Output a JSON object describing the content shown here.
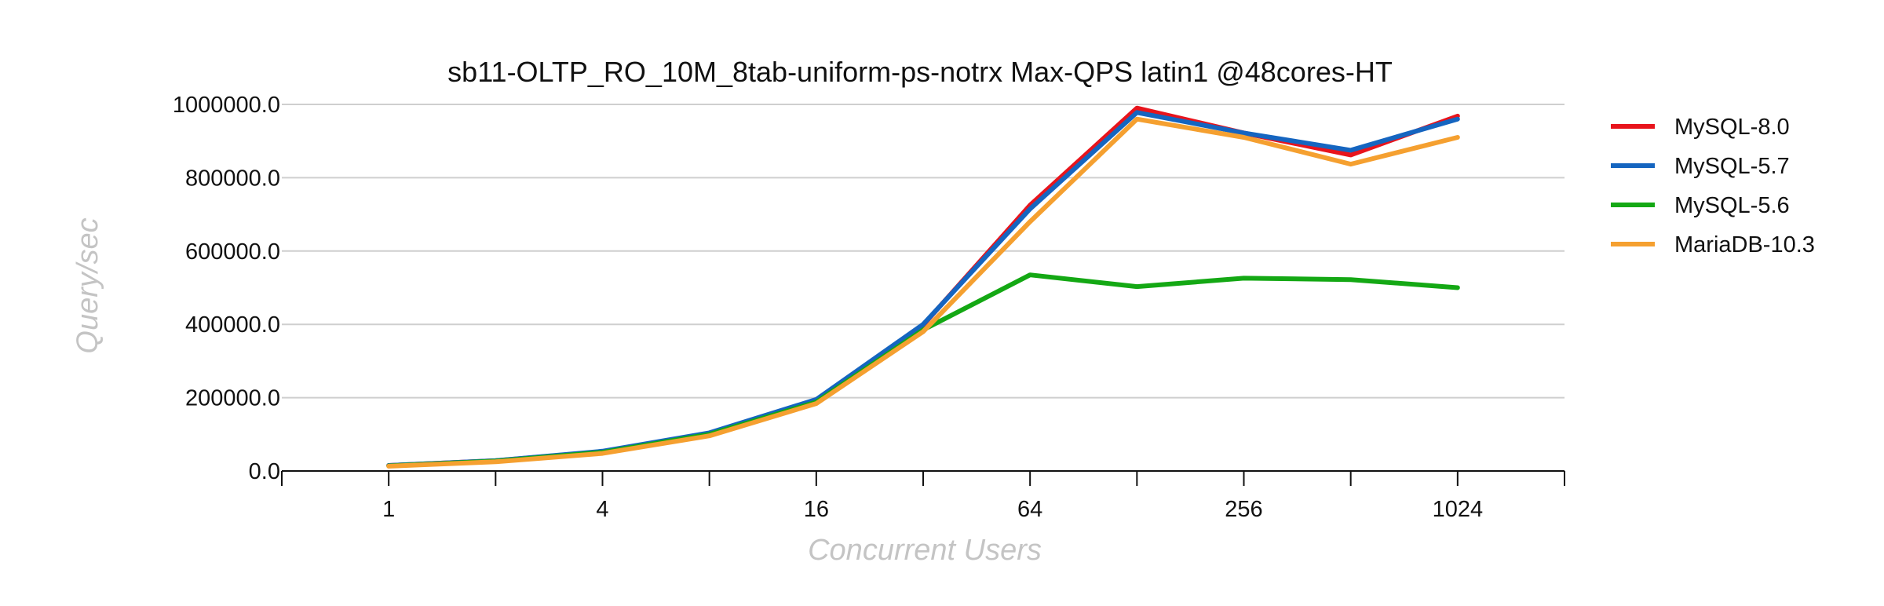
{
  "chart_data": {
    "type": "line",
    "title": "sb11-OLTP_RO_10M_8tab-uniform-ps-notrx Max-QPS latin1 @48cores-HT",
    "xlabel": "Concurrent Users",
    "ylabel": "Query/sec",
    "x_scale": "log2",
    "x_tick_labels": [
      "1",
      "4",
      "16",
      "64",
      "256",
      "1024"
    ],
    "x_tick_values": [
      1,
      4,
      16,
      64,
      256,
      1024
    ],
    "xlim": [
      0.5,
      2048
    ],
    "ylim": [
      0,
      1000000
    ],
    "y_tick_values": [
      0,
      200000,
      400000,
      600000,
      800000,
      1000000
    ],
    "y_tick_labels": [
      "0.0",
      "200000.0",
      "400000.0",
      "600000.0",
      "800000.0",
      "1000000.0"
    ],
    "grid": true,
    "legend_position": "right",
    "x": [
      1,
      2,
      4,
      8,
      16,
      32,
      64,
      128,
      256,
      512,
      1024
    ],
    "series": [
      {
        "name": "MySQL-8.0",
        "color": "#e8141c",
        "values": [
          15000,
          28000,
          53000,
          103000,
          193000,
          398000,
          725000,
          990000,
          922000,
          862000,
          968000
        ]
      },
      {
        "name": "MySQL-5.7",
        "color": "#1565c0",
        "values": [
          15000,
          28000,
          54000,
          104000,
          195000,
          400000,
          715000,
          978000,
          922000,
          875000,
          960000
        ]
      },
      {
        "name": "MySQL-5.6",
        "color": "#14a814",
        "values": [
          14000,
          27000,
          51000,
          100000,
          188000,
          385000,
          535000,
          503000,
          526000,
          522000,
          500000
        ]
      },
      {
        "name": "MariaDB-10.3",
        "color": "#f5a030",
        "values": [
          13000,
          25000,
          48000,
          96000,
          184000,
          380000,
          680000,
          960000,
          910000,
          837000,
          910000
        ]
      }
    ]
  }
}
